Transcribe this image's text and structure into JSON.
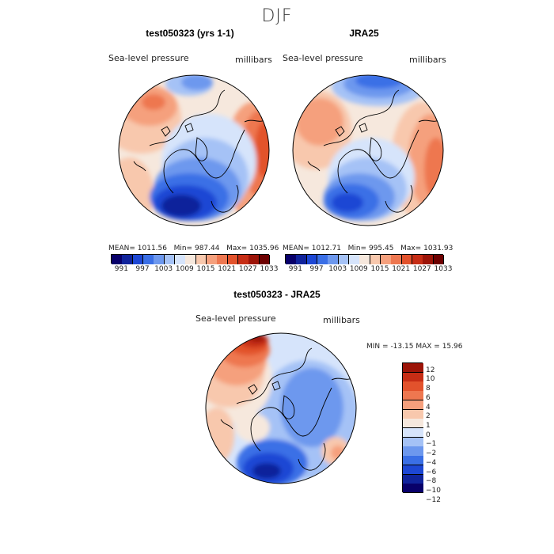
{
  "chart_data": {
    "type": "heatmap",
    "title": "DJF",
    "colors": {
      "absolute": [
        "#08006a",
        "#10239b",
        "#1d47d4",
        "#3a6fe6",
        "#6d98ee",
        "#a5c2f6",
        "#d6e4fb",
        "#f6e8dd",
        "#f8c8ad",
        "#f5a07d",
        "#ee7750",
        "#e2522c",
        "#c62d15",
        "#9c1408",
        "#6d0000"
      ],
      "difference": [
        "#08006a",
        "#10239b",
        "#1d47d4",
        "#3a6fe6",
        "#6d98ee",
        "#a5c2f6",
        "#d6e4fb",
        "#f6e8dd",
        "#f8c8ad",
        "#f5a07d",
        "#ee7750",
        "#e2522c",
        "#c62d15",
        "#9c1408"
      ]
    },
    "panels": [
      {
        "id": "model",
        "title": "test050323 (yrs 1-1)",
        "variable": "Sea-level pressure",
        "units": "millibars",
        "stats": {
          "mean_label": "MEAN=",
          "mean": "1011.56",
          "min_label": "Min=",
          "min": "987.44",
          "max_label": "Max=",
          "max": "1035.96"
        },
        "levels": [
          991,
          994,
          997,
          1000,
          1003,
          1006,
          1009,
          1012,
          1015,
          1018,
          1021,
          1024,
          1027,
          1030,
          1033
        ],
        "tick_labels": [
          "991",
          "997",
          "1003",
          "1009",
          "1015",
          "1021",
          "1027",
          "1033"
        ]
      },
      {
        "id": "obs",
        "title": "JRA25",
        "variable": "Sea-level pressure",
        "units": "millibars",
        "stats": {
          "mean_label": "MEAN=",
          "mean": "1012.71",
          "min_label": "Min=",
          "min": "995.45",
          "max_label": "Max=",
          "max": "1031.93"
        },
        "levels": [
          991,
          994,
          997,
          1000,
          1003,
          1006,
          1009,
          1012,
          1015,
          1018,
          1021,
          1024,
          1027,
          1030,
          1033
        ],
        "tick_labels": [
          "991",
          "997",
          "1003",
          "1009",
          "1015",
          "1021",
          "1027",
          "1033"
        ]
      },
      {
        "id": "diff",
        "title": "test050323 - JRA25",
        "variable": "Sea-level pressure",
        "units": "millibars",
        "stats": {
          "min_label": "MIN =",
          "min": "-13.15",
          "max_label": "MAX =",
          "max": "15.96"
        },
        "levels": [
          -12,
          -10,
          -8,
          -6,
          -4,
          -2,
          -1,
          0,
          1,
          2,
          4,
          6,
          8,
          10,
          12
        ],
        "tick_labels": [
          "12",
          "10",
          "8",
          "6",
          "4",
          "2",
          "1",
          "0",
          "−1",
          "−2",
          "−4",
          "−6",
          "−8",
          "−10",
          "−12"
        ]
      }
    ]
  }
}
